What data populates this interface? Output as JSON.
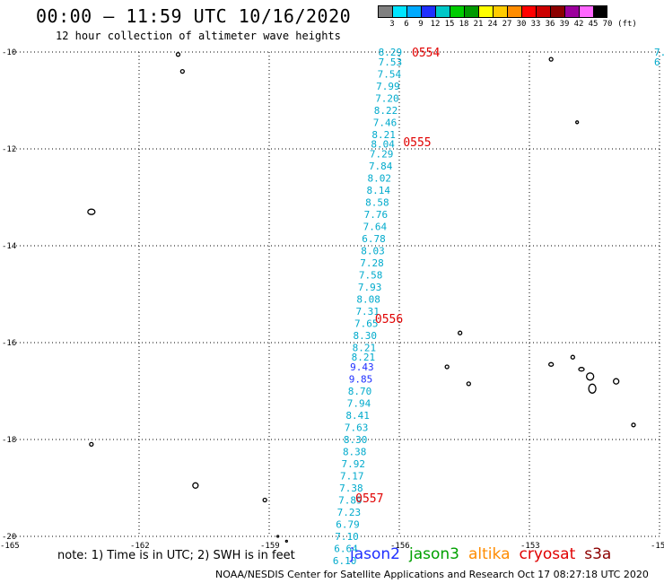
{
  "title": "00:00 – 11:59 UTC 10/16/2020",
  "subtitle": "12 hour collection of altimeter wave heights",
  "legend": {
    "colors": [
      "#808080",
      "#00e5ff",
      "#00aaff",
      "#1f2fff",
      "#00c8c8",
      "#00cc00",
      "#009900",
      "#ffff00",
      "#ffcc00",
      "#ff8c00",
      "#ff0000",
      "#cc0000",
      "#8b0000",
      "#9c009c",
      "#ff66ff",
      "#000000"
    ],
    "labels": [
      "3",
      "6",
      "9",
      "12",
      "15",
      "18",
      "21",
      "24",
      "27",
      "30",
      "33",
      "36",
      "39",
      "42",
      "45",
      "70",
      "(ft)"
    ]
  },
  "map": {
    "lat_labels": [
      "-10",
      "-12",
      "-14",
      "-16",
      "-18",
      "-20"
    ],
    "lon_labels": [
      "-165",
      "-162",
      "-159",
      "-156",
      "-153",
      "-15"
    ],
    "time_labels": [
      "0554",
      "0555",
      "0556",
      "0557"
    ]
  },
  "chart_data": {
    "type": "scatter",
    "title": "00:00 – 11:59 UTC 10/16/2020",
    "subtitle": "12 hour collection of altimeter wave heights",
    "xlim": [
      -165,
      -150
    ],
    "ylim": [
      -20,
      -10
    ],
    "grid": true,
    "track": {
      "unit": "ft",
      "times": [
        {
          "label": "0554",
          "lat": -10.0
        },
        {
          "label": "0555",
          "lat": -11.85
        },
        {
          "label": "0556",
          "lat": -15.5
        },
        {
          "label": "0557",
          "lat": -19.2
        }
      ],
      "points": [
        {
          "lon": -156.5,
          "lat": -10.0,
          "v": "8.29"
        },
        {
          "lon": -156.5,
          "lat": -10.2,
          "v": "7.53"
        },
        {
          "lon": -156.52,
          "lat": -10.45,
          "v": "7.54"
        },
        {
          "lon": -156.55,
          "lat": -10.7,
          "v": "7.99"
        },
        {
          "lon": -156.57,
          "lat": -10.95,
          "v": "7.20"
        },
        {
          "lon": -156.6,
          "lat": -11.2,
          "v": "8.22"
        },
        {
          "lon": -156.62,
          "lat": -11.45,
          "v": "7.46"
        },
        {
          "lon": -156.65,
          "lat": -11.7,
          "v": "8.21"
        },
        {
          "lon": -156.67,
          "lat": -11.9,
          "v": "8.04"
        },
        {
          "lon": -156.7,
          "lat": -12.1,
          "v": "7.29"
        },
        {
          "lon": -156.72,
          "lat": -12.35,
          "v": "7.84"
        },
        {
          "lon": -156.75,
          "lat": -12.6,
          "v": "8.02"
        },
        {
          "lon": -156.77,
          "lat": -12.85,
          "v": "8.14"
        },
        {
          "lon": -156.8,
          "lat": -13.1,
          "v": "8.58"
        },
        {
          "lon": -156.83,
          "lat": -13.35,
          "v": "7.76"
        },
        {
          "lon": -156.85,
          "lat": -13.6,
          "v": "7.64"
        },
        {
          "lon": -156.88,
          "lat": -13.85,
          "v": "6.78"
        },
        {
          "lon": -156.9,
          "lat": -14.1,
          "v": "8.03"
        },
        {
          "lon": -156.92,
          "lat": -14.35,
          "v": "7.28"
        },
        {
          "lon": -156.95,
          "lat": -14.6,
          "v": "7.58"
        },
        {
          "lon": -156.97,
          "lat": -14.85,
          "v": "7.93"
        },
        {
          "lon": -157.0,
          "lat": -15.1,
          "v": "8.08"
        },
        {
          "lon": -157.02,
          "lat": -15.35,
          "v": "7.31"
        },
        {
          "lon": -157.05,
          "lat": -15.6,
          "v": "7.65"
        },
        {
          "lon": -157.08,
          "lat": -15.85,
          "v": "8.30"
        },
        {
          "lon": -157.1,
          "lat": -16.1,
          "v": "8.21"
        },
        {
          "lon": -157.12,
          "lat": -16.3,
          "v": "8.21"
        },
        {
          "lon": -157.15,
          "lat": -16.5,
          "v": "9.43",
          "c": "#1f2fff"
        },
        {
          "lon": -157.18,
          "lat": -16.75,
          "v": "9.85",
          "c": "#1f2fff"
        },
        {
          "lon": -157.2,
          "lat": -17.0,
          "v": "8.70"
        },
        {
          "lon": -157.22,
          "lat": -17.25,
          "v": "7.94"
        },
        {
          "lon": -157.25,
          "lat": -17.5,
          "v": "8.41"
        },
        {
          "lon": -157.28,
          "lat": -17.75,
          "v": "7.63"
        },
        {
          "lon": -157.3,
          "lat": -18.0,
          "v": "8.30"
        },
        {
          "lon": -157.32,
          "lat": -18.25,
          "v": "8.38"
        },
        {
          "lon": -157.35,
          "lat": -18.5,
          "v": "7.92"
        },
        {
          "lon": -157.38,
          "lat": -18.75,
          "v": "7.17"
        },
        {
          "lon": -157.4,
          "lat": -19.0,
          "v": "7.38"
        },
        {
          "lon": -157.42,
          "lat": -19.25,
          "v": "7.89"
        },
        {
          "lon": -157.45,
          "lat": -19.5,
          "v": "7.23"
        },
        {
          "lon": -157.48,
          "lat": -19.75,
          "v": "6.79"
        },
        {
          "lon": -157.5,
          "lat": -20.0,
          "v": "7.10"
        },
        {
          "lon": -157.52,
          "lat": -20.25,
          "v": "6.64"
        },
        {
          "lon": -157.55,
          "lat": -20.5,
          "v": "6.10"
        }
      ],
      "edge_points": [
        {
          "lon": -150.1,
          "lat": -10.0,
          "v": "7."
        },
        {
          "lon": -150.1,
          "lat": -10.2,
          "v": "6"
        }
      ]
    }
  },
  "note": "note: 1) Time is in UTC; 2) SWH is in feet",
  "satellites": [
    {
      "name": "jason2",
      "color": "#1f2fff"
    },
    {
      "name": "jason3",
      "color": "#00a000"
    },
    {
      "name": "altika",
      "color": "#ff8c00"
    },
    {
      "name": "cryosat",
      "color": "#e00000"
    },
    {
      "name": "s3a",
      "color": "#8b0000"
    }
  ],
  "credit": "NOAA/NESDIS Center for Satellite Applications and Research    Oct 17 08:27:18 UTC 2020"
}
